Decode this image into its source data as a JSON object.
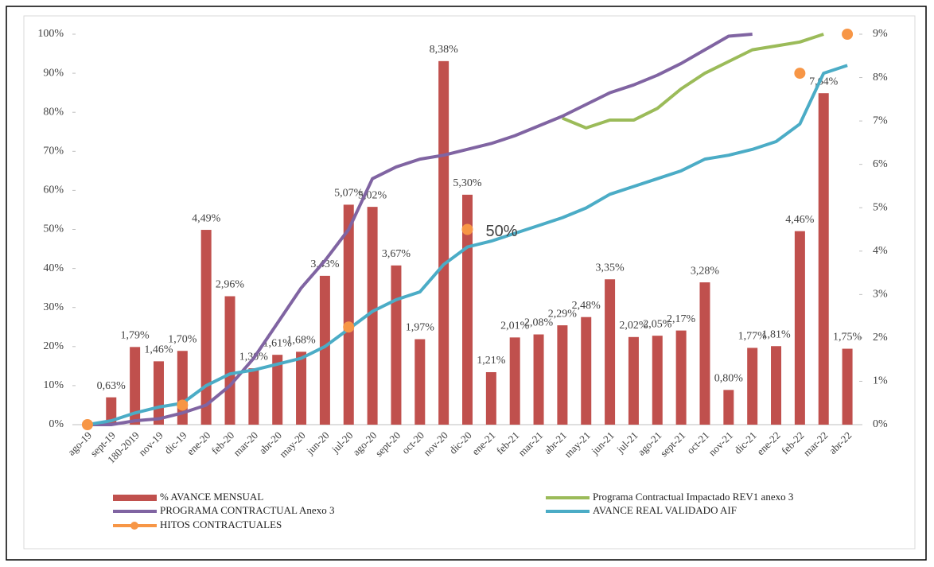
{
  "chart_data": {
    "type": "combo",
    "categories": [
      "ago-19",
      "sept-19",
      "180-2019",
      "nov-19",
      "dic-19",
      "ene-20",
      "feb-20",
      "mar-20",
      "abr-20",
      "may-20",
      "jun-20",
      "jul-20",
      "ago-20",
      "sept-20",
      "oct-20",
      "nov-20",
      "dic-20",
      "ene-21",
      "feb-21",
      "mar-21",
      "abr-21",
      "may-21",
      "jun-21",
      "jul-21",
      "ago-21",
      "sept-21",
      "oct-21",
      "nov-21",
      "dic-21",
      "ene-22",
      "feb-22",
      "mar-22",
      "abr-22"
    ],
    "ylim": [
      0,
      100
    ],
    "yticks": [
      {
        "value": 0,
        "label": "0%"
      },
      {
        "value": 10,
        "label": "10%"
      },
      {
        "value": 20,
        "label": "20%"
      },
      {
        "value": 30,
        "label": "30%"
      },
      {
        "value": 40,
        "label": "40%"
      },
      {
        "value": 50,
        "label": "50%"
      },
      {
        "value": 60,
        "label": "60%"
      },
      {
        "value": 70,
        "label": "70%"
      },
      {
        "value": 80,
        "label": "80%"
      },
      {
        "value": 90,
        "label": "90%"
      },
      {
        "value": 100,
        "label": "100%"
      }
    ],
    "y2lim": [
      0,
      9
    ],
    "y2ticks": [
      {
        "value": 0,
        "label": "0%"
      },
      {
        "value": 1,
        "label": "1%"
      },
      {
        "value": 2,
        "label": "2%"
      },
      {
        "value": 3,
        "label": "3%"
      },
      {
        "value": 4,
        "label": "4%"
      },
      {
        "value": 5,
        "label": "5%"
      },
      {
        "value": 6,
        "label": "6%"
      },
      {
        "value": 7,
        "label": "7%"
      },
      {
        "value": 8,
        "label": "8%"
      },
      {
        "value": 9,
        "label": "9%"
      }
    ],
    "series": [
      {
        "name": "% AVANCE MENSUAL",
        "kind": "bar",
        "axis": "y2",
        "color": "#c0504d",
        "values": [
          null,
          0.63,
          1.79,
          1.46,
          1.7,
          4.49,
          2.96,
          1.3,
          1.61,
          1.68,
          3.43,
          5.07,
          5.02,
          3.67,
          1.97,
          8.38,
          5.3,
          1.21,
          2.01,
          2.08,
          2.29,
          2.48,
          3.35,
          2.02,
          2.05,
          2.17,
          3.28,
          0.8,
          1.77,
          1.81,
          4.46,
          7.64,
          1.75
        ],
        "value_labels": [
          null,
          "0,63%",
          "1,79%",
          "1,46%",
          "1,70%",
          "4,49%",
          "2,96%",
          "1,30%",
          "1,61%",
          "1,68%",
          "3,43%",
          "5,07%",
          "5,02%",
          "3,67%",
          "1,97%",
          "8,38%",
          "5,30%",
          "1,21%",
          "2,01%",
          "2,08%",
          "2,29%",
          "2,48%",
          "3,35%",
          "2,02%",
          "2,05%",
          "2,17%",
          "3,28%",
          "0,80%",
          "1,77%",
          "1,81%",
          "4,46%",
          "7,64%",
          "1,75%"
        ]
      },
      {
        "name": "Programa Contractual Impactado REV1 anexo 3",
        "kind": "line",
        "color": "#9bbb59",
        "values": [
          null,
          null,
          null,
          null,
          null,
          null,
          null,
          null,
          null,
          null,
          null,
          null,
          null,
          null,
          null,
          null,
          null,
          null,
          null,
          null,
          78.5,
          76,
          78,
          78,
          81,
          86,
          90,
          93,
          96,
          97,
          98,
          100,
          null
        ]
      },
      {
        "name": "PROGRAMA CONTRACTUAL Anexo 3",
        "kind": "line",
        "color": "#8064a2",
        "values": [
          0,
          0,
          1,
          1.5,
          3,
          5,
          10,
          17,
          26,
          35,
          42,
          50,
          63,
          66,
          68,
          69,
          70.5,
          72,
          74,
          76.5,
          79,
          82,
          85,
          87,
          89.5,
          92.5,
          96,
          99.5,
          100,
          null,
          null,
          null,
          null
        ]
      },
      {
        "name": "AVANCE REAL VALIDADO AIF",
        "kind": "line",
        "color": "#4bacc6",
        "values": [
          0,
          1,
          3,
          4.5,
          5.5,
          10,
          13,
          14,
          15.5,
          17,
          20,
          24.5,
          29,
          32,
          34,
          41,
          45.5,
          47,
          49,
          51,
          53,
          55.5,
          59,
          61,
          63,
          65,
          68,
          69,
          70.5,
          72.5,
          77,
          90,
          92
        ]
      },
      {
        "name": "HITOS CONTRACTUALES",
        "kind": "marker",
        "color": "#f79646",
        "values": [
          0,
          null,
          null,
          null,
          5,
          null,
          null,
          null,
          null,
          null,
          null,
          25,
          null,
          null,
          null,
          null,
          50,
          null,
          null,
          null,
          null,
          null,
          null,
          null,
          null,
          null,
          null,
          null,
          null,
          null,
          90,
          null,
          100
        ]
      }
    ],
    "annotations": [
      {
        "text": "50%",
        "category": 16,
        "value": 50
      }
    ]
  }
}
